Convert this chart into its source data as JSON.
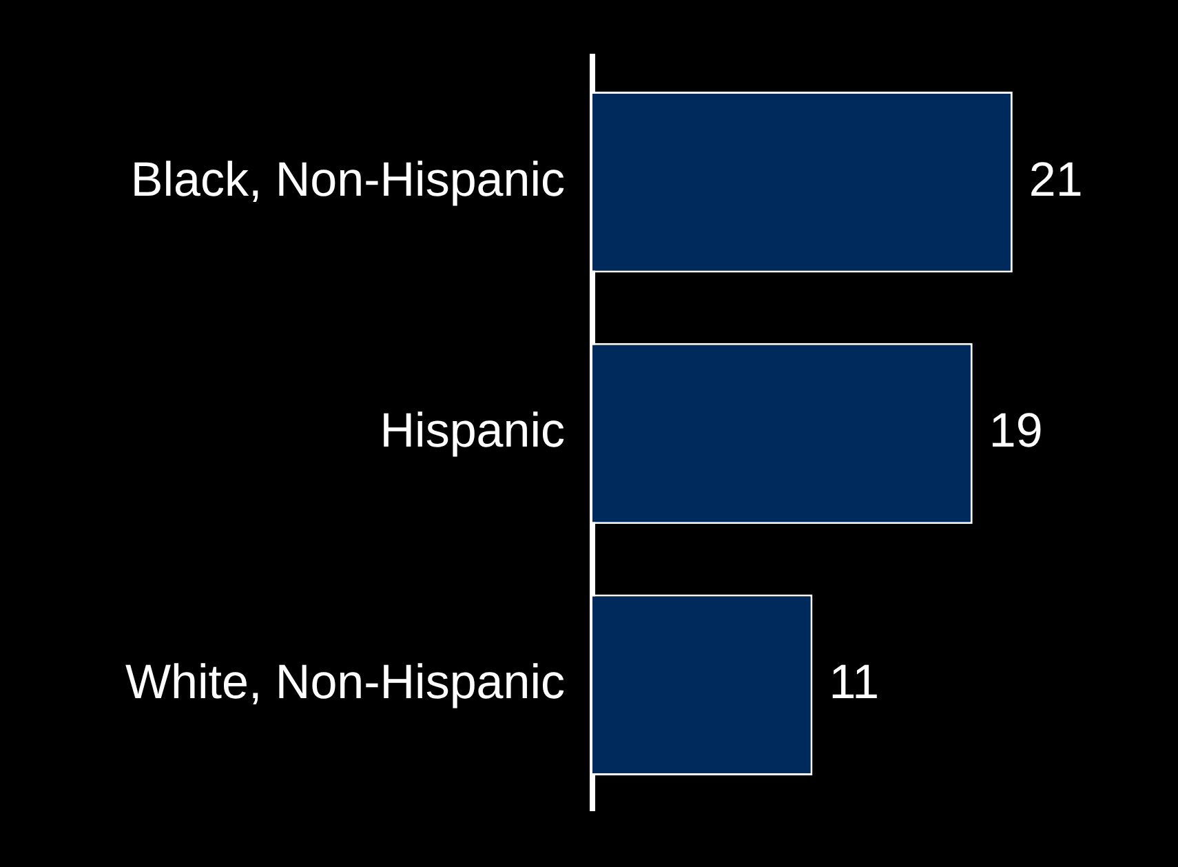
{
  "chart_data": {
    "type": "bar",
    "orientation": "horizontal",
    "categories": [
      "Black, Non-Hispanic",
      "Hispanic",
      "White, Non-Hispanic"
    ],
    "values": [
      21,
      19,
      11
    ],
    "color": "#002a5c",
    "data_labels": true,
    "legend": false
  }
}
